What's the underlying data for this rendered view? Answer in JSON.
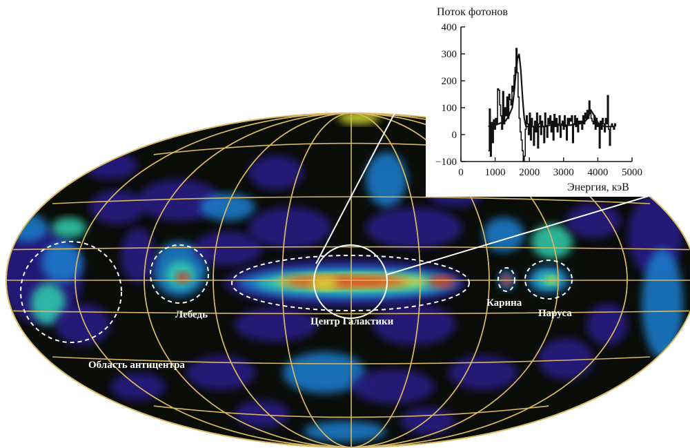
{
  "map": {
    "labels": {
      "cygnus": "Лебедь",
      "center": "Центр Галактики",
      "carina": "Карина",
      "vela": "Паруса",
      "anticenter": "Область антицентра"
    },
    "colors": {
      "background": "#0a0c08",
      "grid": "#d8b860",
      "region_outline": "#ffffff",
      "low": "#2a1f8a",
      "mid_low": "#1f7fd0",
      "mid": "#30d0b0",
      "mid_high": "#d8e030",
      "high": "#e82818"
    }
  },
  "chart_data": {
    "type": "line",
    "ylabel": "Поток фотонов",
    "xlabel": "Энергия, кэВ",
    "xlim": [
      0,
      5000
    ],
    "ylim": [
      -100,
      400
    ],
    "xticks": [
      0,
      1000,
      2000,
      3000,
      4000,
      5000
    ],
    "yticks": [
      -100,
      0,
      100,
      200,
      300,
      400
    ],
    "grid": false,
    "series": [
      {
        "style": "noisy-measured",
        "x": [
          800,
          830,
          860,
          890,
          920,
          950,
          980,
          1010,
          1040,
          1070,
          1100,
          1130,
          1160,
          1190,
          1220,
          1250,
          1280,
          1310,
          1340,
          1370,
          1400,
          1430,
          1460,
          1490,
          1520,
          1550,
          1580,
          1610,
          1640,
          1670,
          1700,
          1730,
          1760,
          1790,
          1820,
          1850,
          1880,
          1910,
          1940,
          1970,
          2000,
          2030,
          2060,
          2090,
          2120,
          2150,
          2180,
          2210,
          2240,
          2270,
          2300,
          2330,
          2360,
          2390,
          2420,
          2450,
          2480,
          2510,
          2540,
          2570,
          2600,
          2630,
          2660,
          2690,
          2720,
          2750,
          2780,
          2810,
          2840,
          2870,
          2900,
          2930,
          2960,
          2990,
          3020,
          3050,
          3080,
          3110,
          3140,
          3170,
          3200,
          3230,
          3260,
          3290,
          3320,
          3350,
          3380,
          3410,
          3440,
          3470,
          3500,
          3530,
          3560,
          3590,
          3620,
          3650,
          3680,
          3710,
          3740,
          3770,
          3800,
          3830,
          3860,
          3890,
          3920,
          3950,
          3980,
          4010,
          4040,
          4070,
          4100,
          4130,
          4160,
          4190,
          4220,
          4250,
          4280,
          4310,
          4340,
          4370,
          4400,
          4430,
          4460,
          4490,
          4520
        ],
        "y": [
          -60,
          95,
          -80,
          45,
          -30,
          55,
          20,
          60,
          40,
          170,
          165,
          110,
          70,
          20,
          160,
          40,
          100,
          70,
          140,
          60,
          150,
          130,
          110,
          180,
          160,
          220,
          250,
          320,
          230,
          140,
          60,
          10,
          -20,
          -60,
          -100,
          -80,
          20,
          70,
          40,
          0,
          80,
          -20,
          60,
          30,
          -40,
          50,
          10,
          80,
          -50,
          40,
          70,
          0,
          50,
          30,
          -30,
          80,
          30,
          -10,
          60,
          40,
          70,
          10,
          50,
          -20,
          75,
          30,
          60,
          10,
          40,
          70,
          -10,
          40,
          50,
          20,
          70,
          30,
          -20,
          60,
          40,
          60,
          50,
          70,
          -30,
          40,
          70,
          30,
          60,
          10,
          50,
          40,
          50,
          20,
          70,
          40,
          80,
          60,
          90,
          60,
          125,
          80,
          60,
          50,
          40,
          70,
          20,
          60,
          30,
          40,
          -50,
          50,
          20,
          60,
          40,
          10,
          60,
          40,
          145,
          20,
          -40,
          30,
          40,
          30,
          20,
          40,
          30
        ]
      },
      {
        "style": "smooth-model",
        "x": [
          800,
          900,
          1000,
          1100,
          1200,
          1300,
          1400,
          1500,
          1550,
          1600,
          1650,
          1700,
          1750,
          1800,
          1850,
          1900,
          1950,
          2000,
          2100,
          2200,
          2300,
          2400,
          2600,
          2800,
          3000,
          3200,
          3400,
          3600,
          3700,
          3800,
          3900,
          4000,
          4100,
          4200,
          4300,
          4400,
          4500
        ],
        "y": [
          30,
          35,
          35,
          40,
          45,
          50,
          70,
          100,
          150,
          220,
          280,
          300,
          240,
          140,
          60,
          30,
          30,
          30,
          30,
          30,
          30,
          30,
          35,
          35,
          35,
          35,
          40,
          45,
          60,
          90,
          70,
          45,
          35,
          30,
          30,
          30,
          30
        ]
      }
    ]
  }
}
